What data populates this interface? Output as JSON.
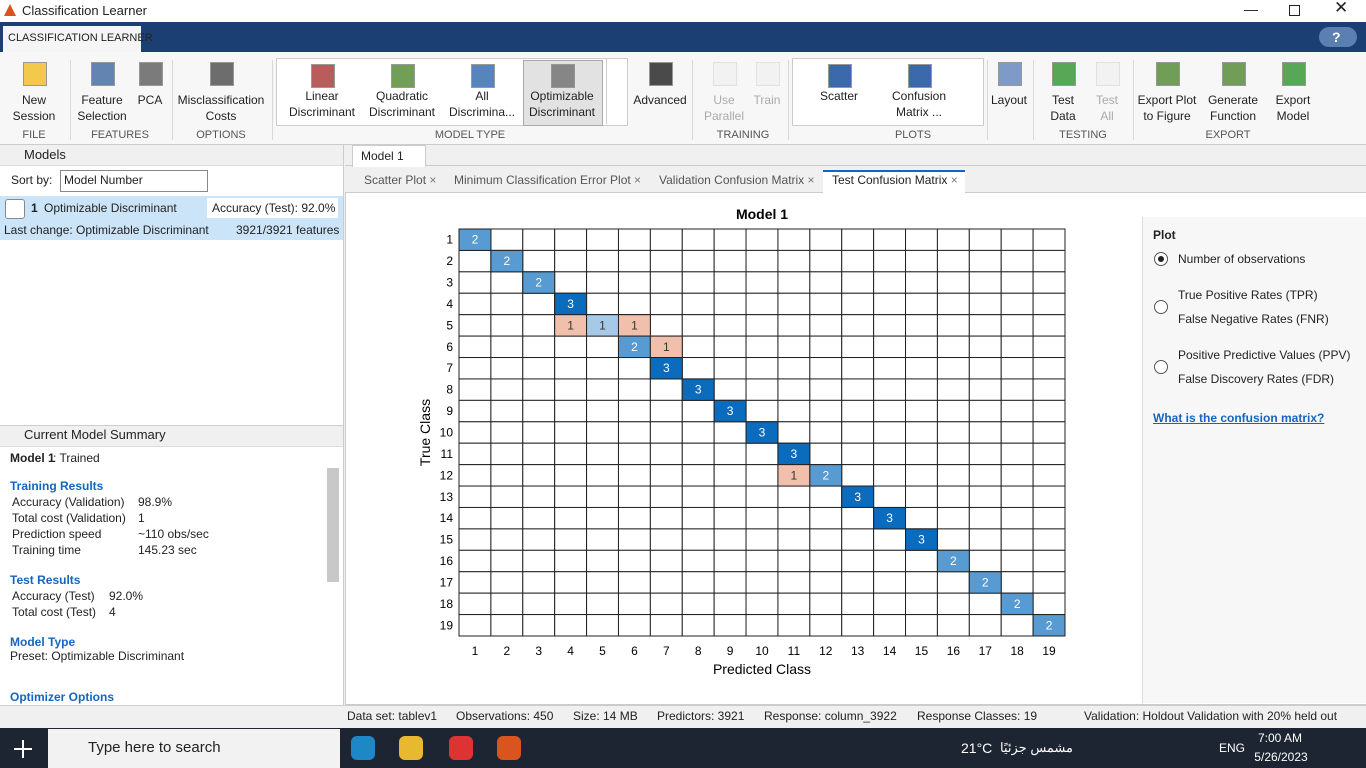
{
  "window": {
    "title": "Classification Learner"
  },
  "ribbon": {
    "tab": "CLASSIFICATION LEARNER",
    "help": "?",
    "sections": [
      {
        "label": "FILE",
        "buttons": [
          {
            "lines": [
              "New",
              "Session"
            ]
          }
        ]
      },
      {
        "label": "FEATURES",
        "buttons": [
          {
            "lines": [
              "Feature",
              "Selection"
            ]
          },
          {
            "lines": [
              "PCA"
            ]
          }
        ]
      },
      {
        "label": "OPTIONS",
        "buttons": [
          {
            "lines": [
              "Misclassification",
              "Costs"
            ]
          }
        ]
      },
      {
        "label": "MODEL TYPE",
        "buttons": [
          {
            "lines": [
              "Linear",
              "Discriminant"
            ]
          },
          {
            "lines": [
              "Quadratic",
              "Discriminant"
            ]
          },
          {
            "lines": [
              "All",
              "Discrimina..."
            ]
          },
          {
            "lines": [
              "Optimizable",
              "Discriminant"
            ],
            "selected": true
          },
          {
            "lines": [
              "Advanced"
            ]
          }
        ]
      },
      {
        "label": "TRAINING",
        "buttons": [
          {
            "lines": [
              "Use",
              "Parallel"
            ],
            "disabled": true
          },
          {
            "lines": [
              "Train"
            ],
            "disabled": true
          }
        ]
      },
      {
        "label": "PLOTS",
        "buttons": [
          {
            "lines": [
              "Scatter"
            ]
          },
          {
            "lines": [
              "Confusion",
              "Matrix ..."
            ]
          }
        ]
      },
      {
        "buttons": [
          {
            "lines": [
              "Layout"
            ]
          }
        ]
      },
      {
        "label": "TESTING",
        "buttons": [
          {
            "lines": [
              "Test",
              "Data"
            ]
          },
          {
            "lines": [
              "Test",
              "All"
            ],
            "disabled": true
          }
        ]
      },
      {
        "label": "EXPORT",
        "buttons": [
          {
            "lines": [
              "Export Plot",
              "to Figure"
            ]
          },
          {
            "lines": [
              "Generate",
              "Function"
            ]
          },
          {
            "lines": [
              "Export",
              "Model"
            ]
          }
        ]
      }
    ]
  },
  "models": {
    "title": "Models",
    "sort_label": "Sort by:",
    "sort_value": "Model Number",
    "items": [
      {
        "number": "1",
        "name": "Optimizable Discriminant",
        "accuracy": "Accuracy (Test): 92.0%",
        "last_change": "Last change: Optimizable Discriminant",
        "features": "3921/3921 features"
      }
    ]
  },
  "summary": {
    "title": "Current Model Summary",
    "model": "Model 1",
    "status": ": Trained",
    "sections": [
      {
        "title": "Training Results",
        "rows": [
          [
            "Accuracy (Validation)",
            "98.9%"
          ],
          [
            "Total cost (Validation)",
            "1"
          ],
          [
            "Prediction speed",
            "~110 obs/sec"
          ],
          [
            "Training time",
            "145.23 sec"
          ]
        ]
      },
      {
        "title": "Test Results",
        "rows": [
          [
            "Accuracy (Test)",
            "92.0%"
          ],
          [
            "Total cost (Test)",
            "4"
          ]
        ]
      },
      {
        "title": "Model Type",
        "lines": [
          "Preset: Optimizable Discriminant"
        ]
      },
      {
        "title": "Optimizer Options"
      }
    ]
  },
  "document": {
    "tab": "Model 1",
    "plot_tabs": [
      {
        "label": "Scatter Plot"
      },
      {
        "label": "Minimum Classification Error Plot"
      },
      {
        "label": "Validation Confusion Matrix"
      },
      {
        "label": "Test Confusion Matrix",
        "active": true
      }
    ]
  },
  "confusion_matrix": {
    "type": "confusion_matrix",
    "title": "Model 1",
    "xlabel": "Predicted Class",
    "ylabel": "True Class",
    "classes": [
      1,
      2,
      3,
      4,
      5,
      6,
      7,
      8,
      9,
      10,
      11,
      12,
      13,
      14,
      15,
      16,
      17,
      18,
      19
    ],
    "diagonal_color": "#0b6bbd",
    "off_diagonal_color": "#d9541e",
    "cells": [
      {
        "row": 1,
        "col": 1,
        "value": 2
      },
      {
        "row": 2,
        "col": 2,
        "value": 2
      },
      {
        "row": 3,
        "col": 3,
        "value": 2
      },
      {
        "row": 4,
        "col": 4,
        "value": 3
      },
      {
        "row": 5,
        "col": 4,
        "value": 1
      },
      {
        "row": 5,
        "col": 5,
        "value": 1
      },
      {
        "row": 5,
        "col": 6,
        "value": 1
      },
      {
        "row": 6,
        "col": 6,
        "value": 2
      },
      {
        "row": 6,
        "col": 7,
        "value": 1
      },
      {
        "row": 7,
        "col": 7,
        "value": 3
      },
      {
        "row": 8,
        "col": 8,
        "value": 3
      },
      {
        "row": 9,
        "col": 9,
        "value": 3
      },
      {
        "row": 10,
        "col": 10,
        "value": 3
      },
      {
        "row": 11,
        "col": 11,
        "value": 3
      },
      {
        "row": 12,
        "col": 11,
        "value": 1
      },
      {
        "row": 12,
        "col": 12,
        "value": 2
      },
      {
        "row": 13,
        "col": 13,
        "value": 3
      },
      {
        "row": 14,
        "col": 14,
        "value": 3
      },
      {
        "row": 15,
        "col": 15,
        "value": 3
      },
      {
        "row": 16,
        "col": 16,
        "value": 2
      },
      {
        "row": 17,
        "col": 17,
        "value": 2
      },
      {
        "row": 18,
        "col": 18,
        "value": 2
      },
      {
        "row": 19,
        "col": 19,
        "value": 2
      }
    ]
  },
  "plot_options": {
    "title": "Plot",
    "options": [
      {
        "lines": [
          "Number of observations"
        ],
        "checked": true
      },
      {
        "lines": [
          "True Positive Rates (TPR)",
          "False Negative Rates (FNR)"
        ]
      },
      {
        "lines": [
          "Positive Predictive Values (PPV)",
          "False Discovery Rates (FDR)"
        ]
      }
    ],
    "link": "What is the confusion matrix?"
  },
  "status_bar": {
    "items": [
      "Data set: tablev1",
      "Observations: 450",
      "Size: 14 MB",
      "Predictors: 3921",
      "Response: column_3922",
      "Response Classes: 19",
      "Validation: Holdout Validation with 20% held out"
    ]
  },
  "taskbar": {
    "search": "Type here to search",
    "temperature": "21°C",
    "weather": "مشمس جزئيًا",
    "language": "ENG",
    "time": "7:00 AM",
    "date": "5/26/2023"
  }
}
